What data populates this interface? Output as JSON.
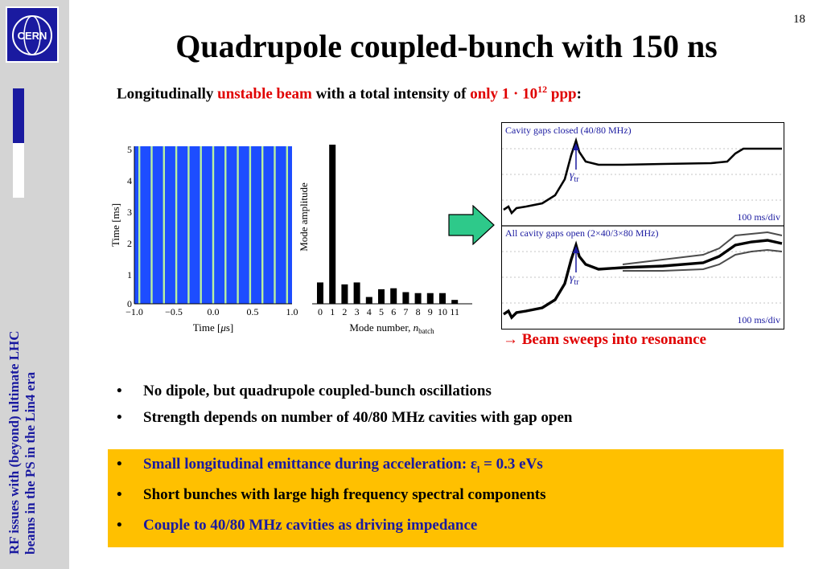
{
  "page_number": "18",
  "title": "Quadrupole coupled-bunch with 150 ns",
  "subtitle": {
    "prefix": "Longitudinally ",
    "highlight1": "unstable beam",
    "middle": " with a total intensity of ",
    "highlight2": "only 1 · 10",
    "exponent": "12",
    "highlight3": " ppp",
    "suffix": ":"
  },
  "sidebar": {
    "logo_text": "CERN",
    "vertical_line1": "RF issues with (beyond) ultimate LHC",
    "vertical_line2": "beams in the PS in the Lin4 era"
  },
  "left_plot": {
    "ylabel": "Time [ms]",
    "xlabel": "Time [",
    "xlabel_mu": "μ",
    "xlabel_end": "s]",
    "yticks": [
      "5",
      "4",
      "3",
      "2",
      "1",
      "0"
    ],
    "xticks": [
      "−1.0",
      "−0.5",
      "0.0",
      "0.5",
      "1.0"
    ]
  },
  "chart_data": {
    "type": "bar",
    "title": "",
    "xlabel": "Mode number, n_batch",
    "ylabel": "Mode amplitude",
    "categories": [
      "0",
      "1",
      "2",
      "3",
      "4",
      "5",
      "6",
      "7",
      "8",
      "9",
      "10",
      "11"
    ],
    "values": [
      1.1,
      8.2,
      1.0,
      1.1,
      0.35,
      0.75,
      0.8,
      0.6,
      0.55,
      0.55,
      0.55,
      0.2
    ]
  },
  "bar_plot": {
    "ylabel": "Mode amplitude",
    "xlabel": "Mode number, ",
    "xlabel_n": "n",
    "xlabel_sub": "batch",
    "xticks": [
      "0",
      "1",
      "2",
      "3",
      "4",
      "5",
      "6",
      "7",
      "8",
      "9",
      "10",
      "11"
    ]
  },
  "right_plot": {
    "top_label": "Cavity gaps closed (40/80 MHz)",
    "bottom_label": "All cavity gaps open (2×40/3×80 MHz)",
    "gamma": "γ",
    "gamma_sub": "tr",
    "scale": "100 ms/div"
  },
  "sweep_text": "→ Beam sweeps into resonance",
  "bullets": [
    "No dipole, but quadrupole coupled-bunch oscillations",
    "Strength depends on number of 40/80 MHz cavities with gap open"
  ],
  "yellow_bullets": {
    "b1_text": "Small longitudinal emittance during acceleration: ε",
    "b1_sub": "l",
    "b1_end": " = 0.3 eVs",
    "b2": "Short bunches with large high frequency spectral components",
    "b3": "Couple to 40/80 MHz cavities as driving impedance"
  },
  "colors": {
    "accent_blue": "#1a1aa0",
    "red": "#e00000",
    "yellow": "#ffc000",
    "arrow_green": "#2ec98a",
    "plot_blue": "#1d4dff",
    "stripe_green": "#b8f0a0"
  }
}
